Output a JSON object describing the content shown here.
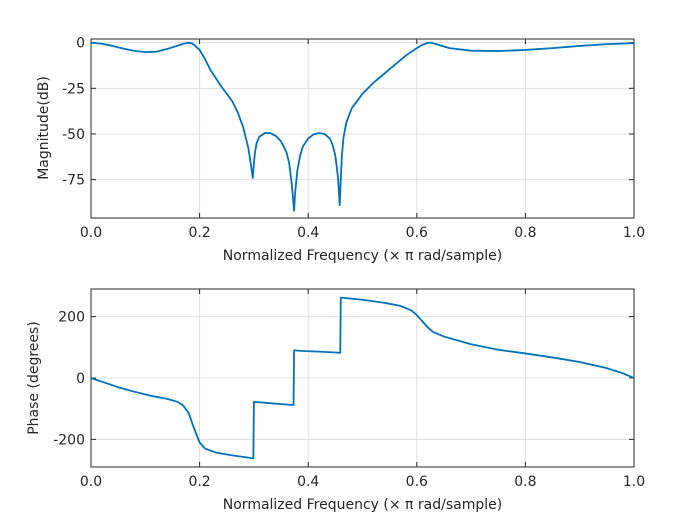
{
  "colors": {
    "line": "#0072BD",
    "grid": "#dfdfdf",
    "axis": "#262626"
  },
  "chart_data": [
    {
      "type": "line",
      "title": "",
      "xlabel": "Normalized Frequency  (× π rad/sample)",
      "ylabel": "Magnitude(dB)",
      "xlim": [
        0,
        1
      ],
      "ylim": [
        -96,
        2
      ],
      "grid": true,
      "xticks": [
        0,
        0.2,
        0.4,
        0.6,
        0.8,
        1
      ],
      "xtick_labels": [
        "0.0",
        "0.2",
        "0.4",
        "0.6",
        "0.8",
        "1.0"
      ],
      "yticks": [
        0,
        -25,
        -50,
        -75
      ],
      "ytick_labels": [
        "0",
        "-25",
        "-50",
        "-75"
      ],
      "series": [
        {
          "name": "Magnitude",
          "x": [
            0,
            0.02,
            0.04,
            0.06,
            0.08,
            0.1,
            0.12,
            0.14,
            0.16,
            0.17,
            0.18,
            0.185,
            0.19,
            0.2,
            0.21,
            0.22,
            0.24,
            0.26,
            0.27,
            0.28,
            0.29,
            0.295,
            0.298,
            0.3,
            0.302,
            0.305,
            0.31,
            0.32,
            0.33,
            0.34,
            0.35,
            0.36,
            0.365,
            0.37,
            0.374,
            0.376,
            0.38,
            0.385,
            0.39,
            0.4,
            0.41,
            0.42,
            0.43,
            0.44,
            0.445,
            0.45,
            0.455,
            0.458,
            0.46,
            0.462,
            0.465,
            0.47,
            0.48,
            0.5,
            0.52,
            0.54,
            0.56,
            0.58,
            0.6,
            0.61,
            0.62,
            0.625,
            0.63,
            0.64,
            0.66,
            0.7,
            0.75,
            0.8,
            0.85,
            0.9,
            0.95,
            1.0
          ],
          "y": [
            0,
            -0.6,
            -1.8,
            -3.3,
            -4.5,
            -5.2,
            -5.0,
            -3.5,
            -1.6,
            -0.6,
            0,
            -0.3,
            -1.2,
            -4,
            -9,
            -15,
            -24,
            -32,
            -38,
            -46,
            -58,
            -68,
            -74,
            -66,
            -60,
            -55,
            -51.5,
            -49.5,
            -49.5,
            -51,
            -54,
            -60,
            -66,
            -78,
            -92,
            -82,
            -70,
            -62,
            -57,
            -52.5,
            -50.2,
            -49.5,
            -50,
            -52.5,
            -56,
            -62,
            -74,
            -89,
            -75,
            -62,
            -52,
            -44,
            -36,
            -28,
            -22,
            -17,
            -12,
            -7,
            -3,
            -1.2,
            -0.2,
            0,
            -0.3,
            -1.2,
            -3,
            -4.4,
            -4.6,
            -4,
            -3,
            -1.8,
            -0.8,
            -0.3
          ]
        }
      ]
    },
    {
      "type": "line",
      "title": "",
      "xlabel": "Normalized Frequency  (× π rad/sample)",
      "ylabel": "Phase (degrees)",
      "xlim": [
        0,
        1
      ],
      "ylim": [
        -290,
        290
      ],
      "grid": true,
      "xticks": [
        0,
        0.2,
        0.4,
        0.6,
        0.8,
        1
      ],
      "xtick_labels": [
        "0.0",
        "0.2",
        "0.4",
        "0.6",
        "0.8",
        "1.0"
      ],
      "yticks": [
        200,
        0,
        -200
      ],
      "ytick_labels": [
        "200",
        "0",
        "-200"
      ],
      "series": [
        {
          "name": "Phase",
          "x": [
            0,
            0.02,
            0.05,
            0.08,
            0.11,
            0.14,
            0.16,
            0.17,
            0.18,
            0.19,
            0.2,
            0.21,
            0.23,
            0.26,
            0.28,
            0.299,
            0.3,
            0.31,
            0.33,
            0.35,
            0.373,
            0.374,
            0.39,
            0.42,
            0.45,
            0.459,
            0.46,
            0.5,
            0.54,
            0.57,
            0.59,
            0.6,
            0.61,
            0.62,
            0.63,
            0.65,
            0.7,
            0.75,
            0.8,
            0.85,
            0.9,
            0.95,
            0.98,
            1.0
          ],
          "y": [
            0,
            -12,
            -30,
            -45,
            -58,
            -68,
            -78,
            -90,
            -115,
            -165,
            -210,
            -230,
            -243,
            -252,
            -257,
            -262,
            -78,
            -79,
            -82,
            -85,
            -88,
            90,
            88,
            86,
            83,
            82,
            262,
            255,
            245,
            235,
            220,
            205,
            185,
            165,
            150,
            135,
            110,
            92,
            80,
            67,
            52,
            32,
            15,
            0
          ]
        }
      ]
    }
  ]
}
